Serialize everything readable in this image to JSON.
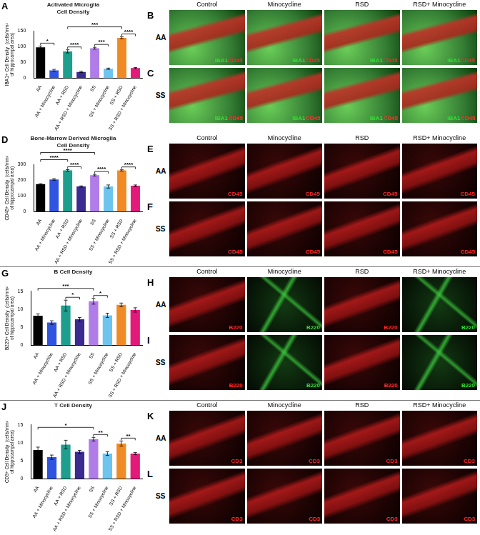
{
  "chart_data": [
    {
      "type": "bar",
      "panel_label": "A",
      "title": [
        "Activated Microglia",
        "Cell Density"
      ],
      "y_label": [
        "IBA1+ Cell Density  (cells/mm²",
        "of hippocampal area)"
      ],
      "categories": [
        "AA",
        "AA + Minocycline",
        "AA + RSD",
        "AA + RSD + Minocycline",
        "SS",
        "SS + Minocycline",
        "SS + RSD",
        "SS + RSD + Minocycline"
      ],
      "values": [
        98,
        25,
        85,
        20,
        95,
        30,
        128,
        32
      ],
      "errors": [
        4,
        3,
        5,
        2,
        3,
        2,
        3,
        2
      ],
      "colors": [
        "#000000",
        "#2f55e0",
        "#1e9e8c",
        "#3b2a8f",
        "#b07ce8",
        "#6cc4ef",
        "#f08a24",
        "#e31a7a"
      ],
      "ylim": [
        0,
        150
      ],
      "yticks": [
        0,
        50,
        100,
        150
      ],
      "grid": false,
      "annotations": [
        {
          "text": "*",
          "from": "AA",
          "to": "AA + Minocycline"
        },
        {
          "text": "****",
          "from": "AA + RSD",
          "to": "AA + RSD + Minocycline"
        },
        {
          "text": "***",
          "from": "AA + RSD",
          "to": "SS + RSD"
        },
        {
          "text": "***",
          "from": "SS",
          "to": "SS + Minocycline"
        },
        {
          "text": "****",
          "from": "SS + RSD",
          "to": "SS + RSD + Minocycline"
        }
      ]
    },
    {
      "type": "bar",
      "panel_label": "D",
      "title": [
        "Bone-Marrow Derived Microglia",
        "Cell Density"
      ],
      "y_label": [
        "CD45+ Cell Density  (cells/mm²",
        "of hippocampal area)"
      ],
      "categories": [
        "AA",
        "AA + Minocycline",
        "AA + RSD",
        "AA + RSD + Minocycline",
        "SS",
        "SS + Minocycline",
        "SS + RSD",
        "SS + RSD + Minocycline"
      ],
      "values": [
        175,
        205,
        262,
        160,
        232,
        160,
        262,
        165
      ],
      "errors": [
        3,
        5,
        5,
        4,
        5,
        10,
        4,
        5
      ],
      "colors": [
        "#000000",
        "#2f55e0",
        "#1e9e8c",
        "#3b2a8f",
        "#b07ce8",
        "#6cc4ef",
        "#f08a24",
        "#e31a7a"
      ],
      "ylim": [
        0,
        300
      ],
      "yticks": [
        0,
        100,
        200,
        300
      ],
      "grid": false,
      "annotations": [
        {
          "text": "****",
          "from": "AA",
          "to": "AA + RSD"
        },
        {
          "text": "****",
          "from": "AA",
          "to": "SS"
        },
        {
          "text": "****",
          "from": "AA + RSD",
          "to": "AA + RSD + Minocycline"
        },
        {
          "text": "****",
          "from": "SS",
          "to": "SS + Minocycline"
        },
        {
          "text": "****",
          "from": "SS + RSD",
          "to": "SS + RSD + Minocycline"
        }
      ]
    },
    {
      "type": "bar",
      "panel_label": "G",
      "title": [
        "B Cell Density"
      ],
      "y_label": [
        "B220+ Cell Density  (cells/mm²",
        "of hippocampal area)"
      ],
      "categories": [
        "AA",
        "AA + Minocycline",
        "AA + RSD",
        "AA + RSD + Minocycline",
        "SS",
        "SS + Minocycline",
        "SS + RSD",
        "SS + RSD + Minocycline"
      ],
      "values": [
        8.2,
        6.3,
        11,
        7.2,
        12.2,
        8.3,
        11.2,
        9.8
      ],
      "errors": [
        0.5,
        0.5,
        1.5,
        0.5,
        0.8,
        0.6,
        0.5,
        0.6
      ],
      "colors": [
        "#000000",
        "#2f55e0",
        "#1e9e8c",
        "#3b2a8f",
        "#b07ce8",
        "#6cc4ef",
        "#f08a24",
        "#e31a7a"
      ],
      "ylim": [
        0,
        15
      ],
      "yticks": [
        0,
        5,
        10,
        15
      ],
      "grid": false,
      "annotations": [
        {
          "text": "***",
          "from": "AA",
          "to": "SS"
        },
        {
          "text": "*",
          "from": "AA + RSD",
          "to": "AA + RSD + Minocycline"
        },
        {
          "text": "*",
          "from": "SS",
          "to": "SS + Minocycline"
        }
      ]
    },
    {
      "type": "bar",
      "panel_label": "J",
      "title": [
        "T Cell Density"
      ],
      "y_label": [
        "CD3+ Cell Density  (cells/mm²",
        "of hippocampal area)"
      ],
      "categories": [
        "AA",
        "AA + Minocycline",
        "AA + RSD",
        "AA + RSD + Minocycline",
        "SS",
        "SS + Minocycline",
        "SS + RSD",
        "SS + RSD + Minocycline"
      ],
      "values": [
        8,
        6,
        9.5,
        7.5,
        11,
        7,
        9.8,
        7
      ],
      "errors": [
        0.8,
        0.6,
        1.2,
        0.4,
        0.5,
        0.5,
        0.7,
        0.3
      ],
      "colors": [
        "#000000",
        "#2f55e0",
        "#1e9e8c",
        "#3b2a8f",
        "#b07ce8",
        "#6cc4ef",
        "#f08a24",
        "#e31a7a"
      ],
      "ylim": [
        0,
        15
      ],
      "yticks": [
        0,
        5,
        10,
        15
      ],
      "grid": false,
      "annotations": [
        {
          "text": "*",
          "from": "AA",
          "to": "SS"
        },
        {
          "text": "**",
          "from": "SS",
          "to": "SS + Minocycline"
        },
        {
          "text": "**",
          "from": "SS + RSD",
          "to": "SS + RSD + Minocycline"
        }
      ]
    }
  ],
  "image_panels": [
    {
      "label": "B",
      "row": "AA",
      "headers": [
        "Control",
        "Minocycline",
        "RSD",
        "RSD+ Minocycline"
      ],
      "tiles": [
        [
          {
            "text": "IBA1",
            "color": "#33dd33"
          },
          {
            "text": "CD45",
            "color": "#ff2a2a"
          }
        ],
        [
          {
            "text": "IBA1",
            "color": "#33dd33"
          },
          {
            "text": "CD45",
            "color": "#ff2a2a"
          }
        ],
        [
          {
            "text": "IBA1",
            "color": "#33dd33"
          },
          {
            "text": "CD45",
            "color": "#ff2a2a"
          }
        ],
        [
          {
            "text": "IBA1",
            "color": "#33dd33"
          },
          {
            "text": "CD45",
            "color": "#ff2a2a"
          }
        ]
      ]
    },
    {
      "label": "C",
      "row": "SS",
      "tiles": [
        [
          {
            "text": "IBA1",
            "color": "#33dd33"
          },
          {
            "text": "CD45",
            "color": "#ff2a2a"
          }
        ],
        [
          {
            "text": "IBA1",
            "color": "#33dd33"
          },
          {
            "text": "CD45",
            "color": "#ff2a2a"
          }
        ],
        [
          {
            "text": "IBA1",
            "color": "#33dd33"
          },
          {
            "text": "CD45",
            "color": "#ff2a2a"
          }
        ],
        [
          {
            "text": "IBA1",
            "color": "#33dd33"
          },
          {
            "text": "CD45",
            "color": "#ff2a2a"
          }
        ]
      ]
    },
    {
      "label": "E",
      "row": "AA",
      "headers": [
        "Control",
        "Minocycline",
        "RSD",
        "RSD+ Minocycline"
      ],
      "tiles": [
        [
          {
            "text": "CD45",
            "color": "#ff2a2a"
          }
        ],
        [
          {
            "text": "CD45",
            "color": "#ff2a2a"
          }
        ],
        [
          {
            "text": "CD45",
            "color": "#ff2a2a"
          }
        ],
        [
          {
            "text": "CD45",
            "color": "#ff2a2a"
          }
        ]
      ]
    },
    {
      "label": "F",
      "row": "SS",
      "tiles": [
        [
          {
            "text": "CD45",
            "color": "#ff2a2a"
          }
        ],
        [
          {
            "text": "CD45",
            "color": "#ff2a2a"
          }
        ],
        [
          {
            "text": "CD45",
            "color": "#ff2a2a"
          }
        ],
        [
          {
            "text": "CD45",
            "color": "#ff2a2a"
          }
        ]
      ]
    },
    {
      "label": "H",
      "row": "AA",
      "headers": [
        "Control",
        "Minocycline",
        "RSD",
        "RSD+ Minocycline"
      ],
      "tiles": [
        [
          {
            "text": "B220",
            "color": "#ff2a2a"
          }
        ],
        [
          {
            "text": "B220",
            "color": "#33dd33"
          }
        ],
        [
          {
            "text": "B220",
            "color": "#ff2a2a"
          }
        ],
        [
          {
            "text": "B220",
            "color": "#33dd33"
          }
        ]
      ]
    },
    {
      "label": "I",
      "row": "SS",
      "tiles": [
        [
          {
            "text": "B220",
            "color": "#ff2a2a"
          }
        ],
        [
          {
            "text": "B220",
            "color": "#33dd33"
          }
        ],
        [
          {
            "text": "B220",
            "color": "#ff2a2a"
          }
        ],
        [
          {
            "text": "B220",
            "color": "#33dd33"
          }
        ]
      ]
    },
    {
      "label": "K",
      "row": "AA",
      "headers": [
        "Control",
        "Minocycline",
        "RSD",
        "RSD+ Minocycline"
      ],
      "tiles": [
        [
          {
            "text": "CD3",
            "color": "#ff2a2a"
          }
        ],
        [
          {
            "text": "CD3",
            "color": "#ff2a2a"
          }
        ],
        [
          {
            "text": "CD3",
            "color": "#ff2a2a"
          }
        ],
        [
          {
            "text": "CD3",
            "color": "#ff2a2a"
          }
        ]
      ]
    },
    {
      "label": "L",
      "row": "SS",
      "tiles": [
        [
          {
            "text": "CD3",
            "color": "#ff2a2a"
          }
        ],
        [
          {
            "text": "CD3",
            "color": "#ff2a2a"
          }
        ],
        [
          {
            "text": "CD3",
            "color": "#ff2a2a"
          }
        ],
        [
          {
            "text": "CD3",
            "color": "#ff2a2a"
          }
        ]
      ]
    }
  ]
}
